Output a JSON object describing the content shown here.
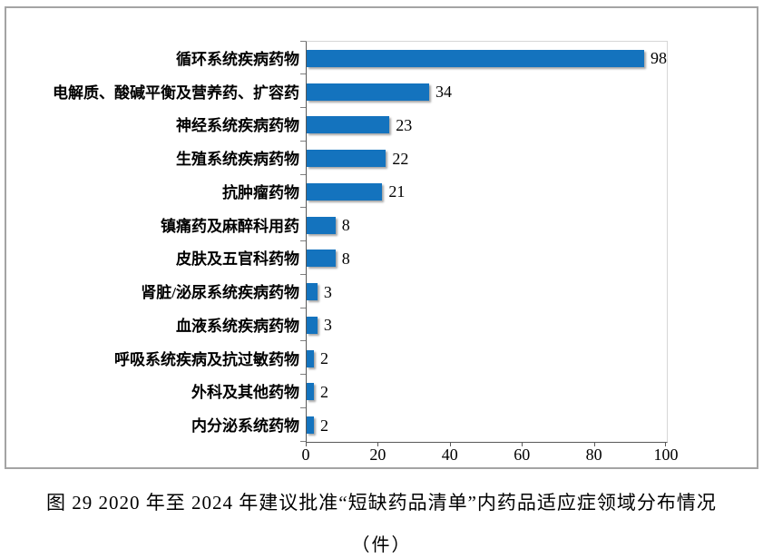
{
  "figure": {
    "caption_line1": "图 29  2020 年至 2024 年建议批准“短缺药品清单”内药品适应症领域分布情况",
    "caption_line2": "（件）"
  },
  "chart_data": {
    "type": "bar",
    "orientation": "horizontal",
    "title": "",
    "xlabel": "",
    "ylabel": "",
    "categories": [
      "循环系统疾病药物",
      "电解质、酸碱平衡及营养药、扩容药",
      "神经系统疾病药物",
      "生殖系统疾病药物",
      "抗肿瘤药物",
      "镇痛药及麻醉科用药",
      "皮肤及五官科药物",
      "肾脏/泌尿系统疾病药物",
      "血液系统疾病药物",
      "呼吸系统疾病及抗过敏药物",
      "外科及其他药物",
      "内分泌系统药物"
    ],
    "values": [
      98,
      34,
      23,
      22,
      21,
      8,
      8,
      3,
      3,
      2,
      2,
      2
    ],
    "xlim": [
      0,
      100
    ],
    "x_ticks": [
      0,
      20,
      40,
      60,
      80,
      100
    ],
    "grid": false,
    "legend": false,
    "data_labels": true,
    "bar_color": "#1473be",
    "frame_border_color": "#a4a4a4",
    "axis_color": "#595959"
  }
}
